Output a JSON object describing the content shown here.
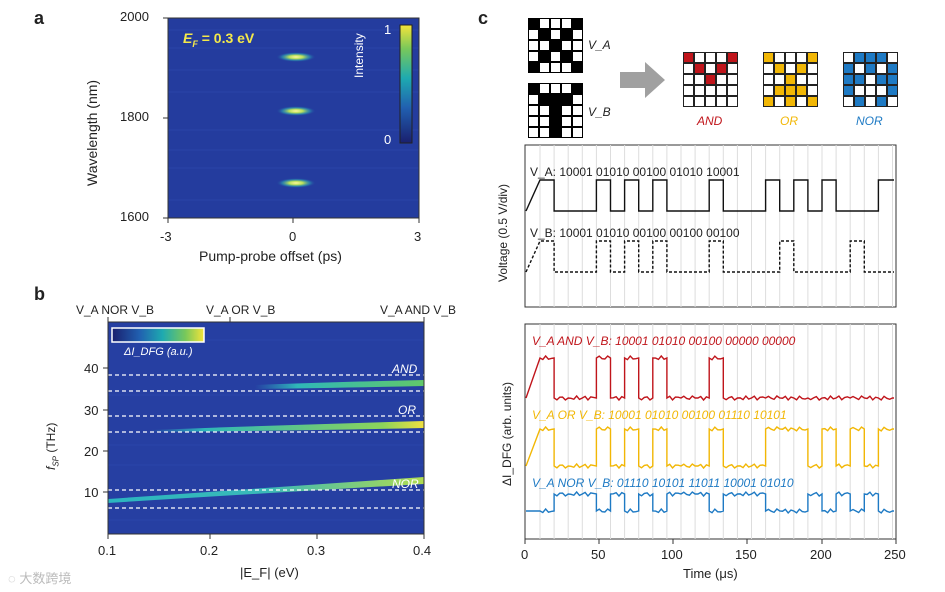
{
  "panels": {
    "a": "a",
    "b": "b",
    "c": "c"
  },
  "panel_a": {
    "title": "E_F = 0.3 eV",
    "title_main": "E",
    "title_sub": "F",
    "title_rest": " = 0.3 eV",
    "ylabel": "Wavelength (nm)",
    "xlabel": "Pump-probe offset (ps)",
    "y_ticks": [
      "2000",
      "1800",
      "1600"
    ],
    "x_ticks": [
      "-3",
      "0",
      "3"
    ],
    "colorbar_label": "Intensity",
    "colorbar_ticks": [
      "1",
      "0"
    ],
    "colors": {
      "bg": "#233a9c",
      "peak": "#f5ee6a"
    }
  },
  "panel_b": {
    "top_labels": [
      "V_A NOR V_B",
      "V_A OR V_B",
      "V_A AND V_B"
    ],
    "ylabel_main": "f",
    "ylabel_sub": "SP",
    "ylabel_rest": " (THz)",
    "xlabel": "|E_F| (eV)",
    "y_ticks": [
      "40",
      "30",
      "20",
      "10"
    ],
    "x_ticks": [
      "0.1",
      "0.2",
      "0.3",
      "0.4"
    ],
    "colorbar_label": "ΔI_DFG (a.u.)",
    "band_labels": [
      "AND",
      "OR",
      "NOR"
    ]
  },
  "panel_c": {
    "inputs": [
      "V_A",
      "V_B"
    ],
    "gates": [
      {
        "name": "AND",
        "color": "#c0151b"
      },
      {
        "name": "OR",
        "color": "#f2b705"
      },
      {
        "name": "NOR",
        "color": "#1e7ac4"
      }
    ],
    "voltage_ylabel": "Voltage (0.5 V/div)",
    "va_label": "V_A: 10001 01010 00100 01010 10001",
    "vb_label": "V_B: 10001 01010 00100 00100 00100",
    "va_bits": "10001 01010 00100 01010 10001",
    "vb_bits": "10001 01010 00100 00100 00100",
    "signal_ylabel": "ΔI_DFG (arb. units)",
    "and_label": "V_A AND V_B: 10001 01010 00100 00000 00000",
    "or_label": "V_A OR V_B: 10001 01010 00100 01110 10101",
    "nor_label": "V_A NOR V_B: 01110 10101 11011 10001 01010",
    "and_bits": "10001 01010 00100 00000 00000",
    "or_bits": "10001 01010 00100 01110 10101",
    "nor_bits": "01110 10101 11011 10001 01010",
    "xlabel": "Time (μs)",
    "x_ticks": [
      "0",
      "50",
      "100",
      "150",
      "200",
      "250"
    ]
  },
  "watermark": "大数跨境"
}
